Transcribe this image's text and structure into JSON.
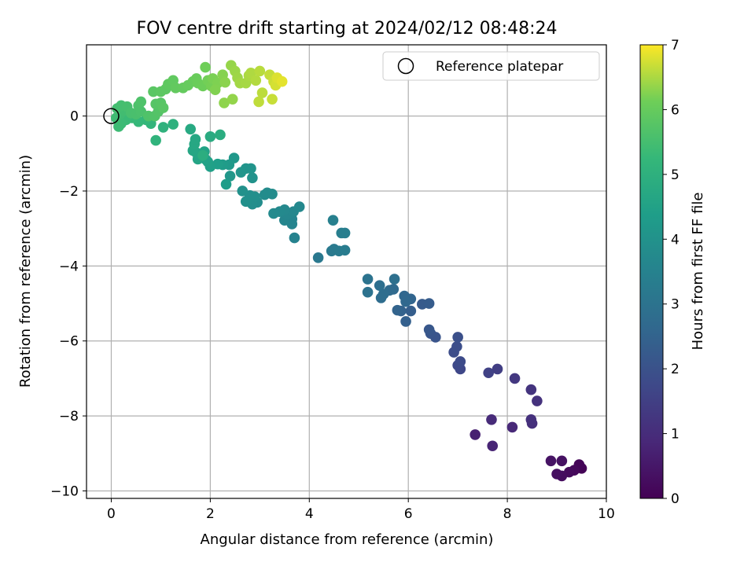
{
  "chart_data": {
    "type": "scatter",
    "title": "FOV centre drift starting at 2024/02/12 08:48:24",
    "xlabel": "Angular distance from reference (arcmin)",
    "ylabel": "Rotation from reference (arcmin)",
    "xlim": [
      -0.5,
      10.0
    ],
    "ylim": [
      -10.2,
      1.9
    ],
    "xticks": [
      0,
      2,
      4,
      6,
      8,
      10
    ],
    "yticks": [
      0,
      -2,
      -4,
      -6,
      -8,
      -10
    ],
    "grid": true,
    "legend": {
      "position": "top-right",
      "entries": [
        "Reference platepar"
      ]
    },
    "reference_point": {
      "x": 0,
      "y": 0,
      "label": "Reference platepar"
    },
    "colorbar": {
      "label": "Hours from first FF file",
      "range": [
        0,
        7
      ],
      "ticks": [
        0,
        1,
        2,
        3,
        4,
        5,
        6,
        7
      ],
      "colormap": "viridis"
    },
    "series": [
      {
        "color_by": "hours",
        "points": [
          {
            "x": 9.5,
            "y": -9.4,
            "c": 0.05
          },
          {
            "x": 9.45,
            "y": -9.3,
            "c": 0.1
          },
          {
            "x": 9.35,
            "y": -9.45,
            "c": 0.15
          },
          {
            "x": 9.25,
            "y": -9.5,
            "c": 0.2
          },
          {
            "x": 9.1,
            "y": -9.6,
            "c": 0.25
          },
          {
            "x": 9.0,
            "y": -9.55,
            "c": 0.3
          },
          {
            "x": 9.1,
            "y": -9.2,
            "c": 0.35
          },
          {
            "x": 8.88,
            "y": -9.2,
            "c": 0.4
          },
          {
            "x": 7.35,
            "y": -8.5,
            "c": 0.7
          },
          {
            "x": 7.7,
            "y": -8.8,
            "c": 0.8
          },
          {
            "x": 8.1,
            "y": -8.3,
            "c": 0.9
          },
          {
            "x": 7.68,
            "y": -8.1,
            "c": 0.95
          },
          {
            "x": 8.5,
            "y": -8.2,
            "c": 1.05
          },
          {
            "x": 8.48,
            "y": -8.1,
            "c": 1.1
          },
          {
            "x": 8.6,
            "y": -7.6,
            "c": 1.15
          },
          {
            "x": 8.48,
            "y": -7.3,
            "c": 1.2
          },
          {
            "x": 8.15,
            "y": -7.0,
            "c": 1.3
          },
          {
            "x": 7.8,
            "y": -6.75,
            "c": 1.45
          },
          {
            "x": 7.62,
            "y": -6.85,
            "c": 1.55
          },
          {
            "x": 7.05,
            "y": -6.75,
            "c": 1.7
          },
          {
            "x": 7.0,
            "y": -6.65,
            "c": 1.75
          },
          {
            "x": 7.05,
            "y": -6.55,
            "c": 1.8
          },
          {
            "x": 6.92,
            "y": -6.3,
            "c": 1.85
          },
          {
            "x": 6.98,
            "y": -6.15,
            "c": 1.9
          },
          {
            "x": 7.0,
            "y": -5.9,
            "c": 1.95
          },
          {
            "x": 6.55,
            "y": -5.9,
            "c": 2.05
          },
          {
            "x": 6.45,
            "y": -5.8,
            "c": 2.1
          },
          {
            "x": 6.42,
            "y": -5.7,
            "c": 2.15
          },
          {
            "x": 6.28,
            "y": -5.02,
            "c": 2.25
          },
          {
            "x": 6.42,
            "y": -5.0,
            "c": 2.3
          },
          {
            "x": 6.05,
            "y": -5.2,
            "c": 2.35
          },
          {
            "x": 5.95,
            "y": -5.48,
            "c": 2.4
          },
          {
            "x": 5.85,
            "y": -5.2,
            "c": 2.45
          },
          {
            "x": 5.78,
            "y": -5.18,
            "c": 2.5
          },
          {
            "x": 6.05,
            "y": -4.88,
            "c": 2.55
          },
          {
            "x": 5.92,
            "y": -4.8,
            "c": 2.6
          },
          {
            "x": 5.95,
            "y": -4.95,
            "c": 2.62
          },
          {
            "x": 5.7,
            "y": -4.62,
            "c": 2.7
          },
          {
            "x": 5.62,
            "y": -4.65,
            "c": 2.72
          },
          {
            "x": 5.5,
            "y": -4.75,
            "c": 2.78
          },
          {
            "x": 5.45,
            "y": -4.85,
            "c": 2.8
          },
          {
            "x": 5.42,
            "y": -4.52,
            "c": 2.85
          },
          {
            "x": 5.72,
            "y": -4.35,
            "c": 2.88
          },
          {
            "x": 5.18,
            "y": -4.7,
            "c": 2.95
          },
          {
            "x": 5.18,
            "y": -4.35,
            "c": 3.0
          },
          {
            "x": 4.18,
            "y": -3.78,
            "c": 3.15
          },
          {
            "x": 4.45,
            "y": -3.6,
            "c": 3.2
          },
          {
            "x": 4.5,
            "y": -3.55,
            "c": 3.22
          },
          {
            "x": 4.6,
            "y": -3.6,
            "c": 3.25
          },
          {
            "x": 4.72,
            "y": -3.58,
            "c": 3.3
          },
          {
            "x": 4.65,
            "y": -3.12,
            "c": 3.35
          },
          {
            "x": 4.72,
            "y": -3.12,
            "c": 3.38
          },
          {
            "x": 4.48,
            "y": -2.78,
            "c": 3.42
          },
          {
            "x": 3.7,
            "y": -3.25,
            "c": 3.5
          },
          {
            "x": 3.65,
            "y": -2.88,
            "c": 3.55
          },
          {
            "x": 3.65,
            "y": -2.75,
            "c": 3.57
          },
          {
            "x": 3.5,
            "y": -2.78,
            "c": 3.6
          },
          {
            "x": 3.55,
            "y": -2.62,
            "c": 3.63
          },
          {
            "x": 3.68,
            "y": -2.55,
            "c": 3.65
          },
          {
            "x": 3.5,
            "y": -2.5,
            "c": 3.68
          },
          {
            "x": 3.8,
            "y": -2.42,
            "c": 3.7
          },
          {
            "x": 3.4,
            "y": -2.55,
            "c": 3.72
          },
          {
            "x": 3.28,
            "y": -2.6,
            "c": 3.75
          },
          {
            "x": 3.15,
            "y": -2.05,
            "c": 3.78
          },
          {
            "x": 3.25,
            "y": -2.08,
            "c": 3.8
          },
          {
            "x": 3.1,
            "y": -2.1,
            "c": 3.82
          },
          {
            "x": 2.95,
            "y": -2.3,
            "c": 3.85
          },
          {
            "x": 2.85,
            "y": -2.35,
            "c": 3.87
          },
          {
            "x": 2.9,
            "y": -2.15,
            "c": 3.9
          },
          {
            "x": 2.8,
            "y": -2.12,
            "c": 3.92
          },
          {
            "x": 2.72,
            "y": -2.28,
            "c": 3.95
          },
          {
            "x": 2.65,
            "y": -2.0,
            "c": 3.97
          },
          {
            "x": 2.85,
            "y": -1.65,
            "c": 4.0
          },
          {
            "x": 2.82,
            "y": -1.4,
            "c": 4.05
          },
          {
            "x": 2.72,
            "y": -1.4,
            "c": 4.07
          },
          {
            "x": 2.62,
            "y": -1.5,
            "c": 4.1
          },
          {
            "x": 2.4,
            "y": -1.6,
            "c": 4.15
          },
          {
            "x": 2.48,
            "y": -1.12,
            "c": 4.2
          },
          {
            "x": 2.38,
            "y": -1.3,
            "c": 4.25
          },
          {
            "x": 2.25,
            "y": -1.3,
            "c": 4.3
          },
          {
            "x": 2.32,
            "y": -1.82,
            "c": 4.35
          },
          {
            "x": 2.15,
            "y": -1.28,
            "c": 4.4
          },
          {
            "x": 2.0,
            "y": -1.35,
            "c": 4.45
          },
          {
            "x": 1.95,
            "y": -1.22,
            "c": 4.48
          },
          {
            "x": 1.9,
            "y": -1.15,
            "c": 4.5
          },
          {
            "x": 1.88,
            "y": -0.95,
            "c": 4.55
          },
          {
            "x": 1.75,
            "y": -1.15,
            "c": 4.6
          },
          {
            "x": 1.72,
            "y": -0.98,
            "c": 4.62
          },
          {
            "x": 1.65,
            "y": -0.92,
            "c": 4.65
          },
          {
            "x": 1.68,
            "y": -0.75,
            "c": 4.68
          },
          {
            "x": 1.7,
            "y": -0.62,
            "c": 4.7
          },
          {
            "x": 1.6,
            "y": -0.35,
            "c": 4.75
          },
          {
            "x": 2.0,
            "y": -0.55,
            "c": 4.8
          },
          {
            "x": 2.2,
            "y": -0.5,
            "c": 4.85
          },
          {
            "x": 1.85,
            "y": -1.05,
            "c": 4.9
          },
          {
            "x": 1.25,
            "y": -0.22,
            "c": 5.0
          },
          {
            "x": 1.05,
            "y": -0.3,
            "c": 5.05
          },
          {
            "x": 0.9,
            "y": -0.65,
            "c": 5.1
          },
          {
            "x": 0.8,
            "y": -0.2,
            "c": 5.15
          },
          {
            "x": 0.7,
            "y": -0.1,
            "c": 5.2
          },
          {
            "x": 0.55,
            "y": -0.15,
            "c": 5.25
          },
          {
            "x": 0.42,
            "y": -0.05,
            "c": 5.3
          },
          {
            "x": 0.3,
            "y": -0.1,
            "c": 5.32
          },
          {
            "x": 0.2,
            "y": -0.2,
            "c": 5.35
          },
          {
            "x": 0.15,
            "y": -0.28,
            "c": 5.38
          },
          {
            "x": 0.1,
            "y": -0.05,
            "c": 5.4
          },
          {
            "x": 0.18,
            "y": 0.05,
            "c": 5.42
          },
          {
            "x": 0.25,
            "y": 0.15,
            "c": 5.45
          },
          {
            "x": 0.12,
            "y": 0.2,
            "c": 5.48
          },
          {
            "x": 0.2,
            "y": 0.28,
            "c": 5.5
          },
          {
            "x": 0.32,
            "y": 0.25,
            "c": 5.52
          },
          {
            "x": 0.4,
            "y": 0.08,
            "c": 5.55
          },
          {
            "x": 0.5,
            "y": 0.05,
            "c": 5.57
          },
          {
            "x": 0.6,
            "y": 0.12,
            "c": 5.6
          },
          {
            "x": 0.55,
            "y": 0.28,
            "c": 5.62
          },
          {
            "x": 0.6,
            "y": 0.38,
            "c": 5.65
          },
          {
            "x": 0.75,
            "y": 0.0,
            "c": 5.67
          },
          {
            "x": 0.88,
            "y": 0.0,
            "c": 5.7
          },
          {
            "x": 0.95,
            "y": 0.12,
            "c": 5.72
          },
          {
            "x": 0.9,
            "y": 0.32,
            "c": 5.75
          },
          {
            "x": 1.0,
            "y": 0.35,
            "c": 5.77
          },
          {
            "x": 1.05,
            "y": 0.22,
            "c": 5.8
          },
          {
            "x": 0.85,
            "y": 0.65,
            "c": 5.82
          },
          {
            "x": 1.0,
            "y": 0.65,
            "c": 5.85
          },
          {
            "x": 1.1,
            "y": 0.72,
            "c": 5.87
          },
          {
            "x": 1.15,
            "y": 0.85,
            "c": 5.9
          },
          {
            "x": 1.25,
            "y": 0.95,
            "c": 5.92
          },
          {
            "x": 1.3,
            "y": 0.75,
            "c": 5.95
          },
          {
            "x": 1.45,
            "y": 0.75,
            "c": 5.97
          },
          {
            "x": 1.55,
            "y": 0.82,
            "c": 6.0
          },
          {
            "x": 1.65,
            "y": 0.92,
            "c": 6.02
          },
          {
            "x": 1.72,
            "y": 1.0,
            "c": 6.05
          },
          {
            "x": 1.75,
            "y": 0.88,
            "c": 6.07
          },
          {
            "x": 1.85,
            "y": 0.8,
            "c": 6.1
          },
          {
            "x": 1.9,
            "y": 1.3,
            "c": 6.12
          },
          {
            "x": 1.95,
            "y": 0.95,
            "c": 6.15
          },
          {
            "x": 2.02,
            "y": 0.8,
            "c": 6.17
          },
          {
            "x": 2.05,
            "y": 1.0,
            "c": 6.2
          },
          {
            "x": 2.15,
            "y": 0.88,
            "c": 6.22
          },
          {
            "x": 2.1,
            "y": 0.7,
            "c": 6.24
          },
          {
            "x": 2.25,
            "y": 1.1,
            "c": 6.27
          },
          {
            "x": 2.3,
            "y": 0.9,
            "c": 6.3
          },
          {
            "x": 2.28,
            "y": 0.35,
            "c": 6.32
          },
          {
            "x": 2.45,
            "y": 0.45,
            "c": 6.35
          },
          {
            "x": 2.42,
            "y": 1.35,
            "c": 6.37
          },
          {
            "x": 2.5,
            "y": 1.2,
            "c": 6.4
          },
          {
            "x": 2.55,
            "y": 1.02,
            "c": 6.42
          },
          {
            "x": 2.6,
            "y": 0.88,
            "c": 6.45
          },
          {
            "x": 2.72,
            "y": 0.88,
            "c": 6.47
          },
          {
            "x": 2.78,
            "y": 1.08,
            "c": 6.5
          },
          {
            "x": 2.82,
            "y": 1.15,
            "c": 6.52
          },
          {
            "x": 2.92,
            "y": 0.95,
            "c": 6.55
          },
          {
            "x": 3.0,
            "y": 1.2,
            "c": 6.58
          },
          {
            "x": 3.05,
            "y": 0.62,
            "c": 6.6
          },
          {
            "x": 2.98,
            "y": 0.38,
            "c": 6.62
          },
          {
            "x": 3.2,
            "y": 1.1,
            "c": 6.65
          },
          {
            "x": 3.25,
            "y": 0.45,
            "c": 6.67
          },
          {
            "x": 3.28,
            "y": 0.92,
            "c": 6.7
          },
          {
            "x": 3.32,
            "y": 0.82,
            "c": 6.75
          },
          {
            "x": 3.35,
            "y": 1.02,
            "c": 6.8
          },
          {
            "x": 3.45,
            "y": 0.92,
            "c": 6.85
          }
        ]
      }
    ]
  }
}
